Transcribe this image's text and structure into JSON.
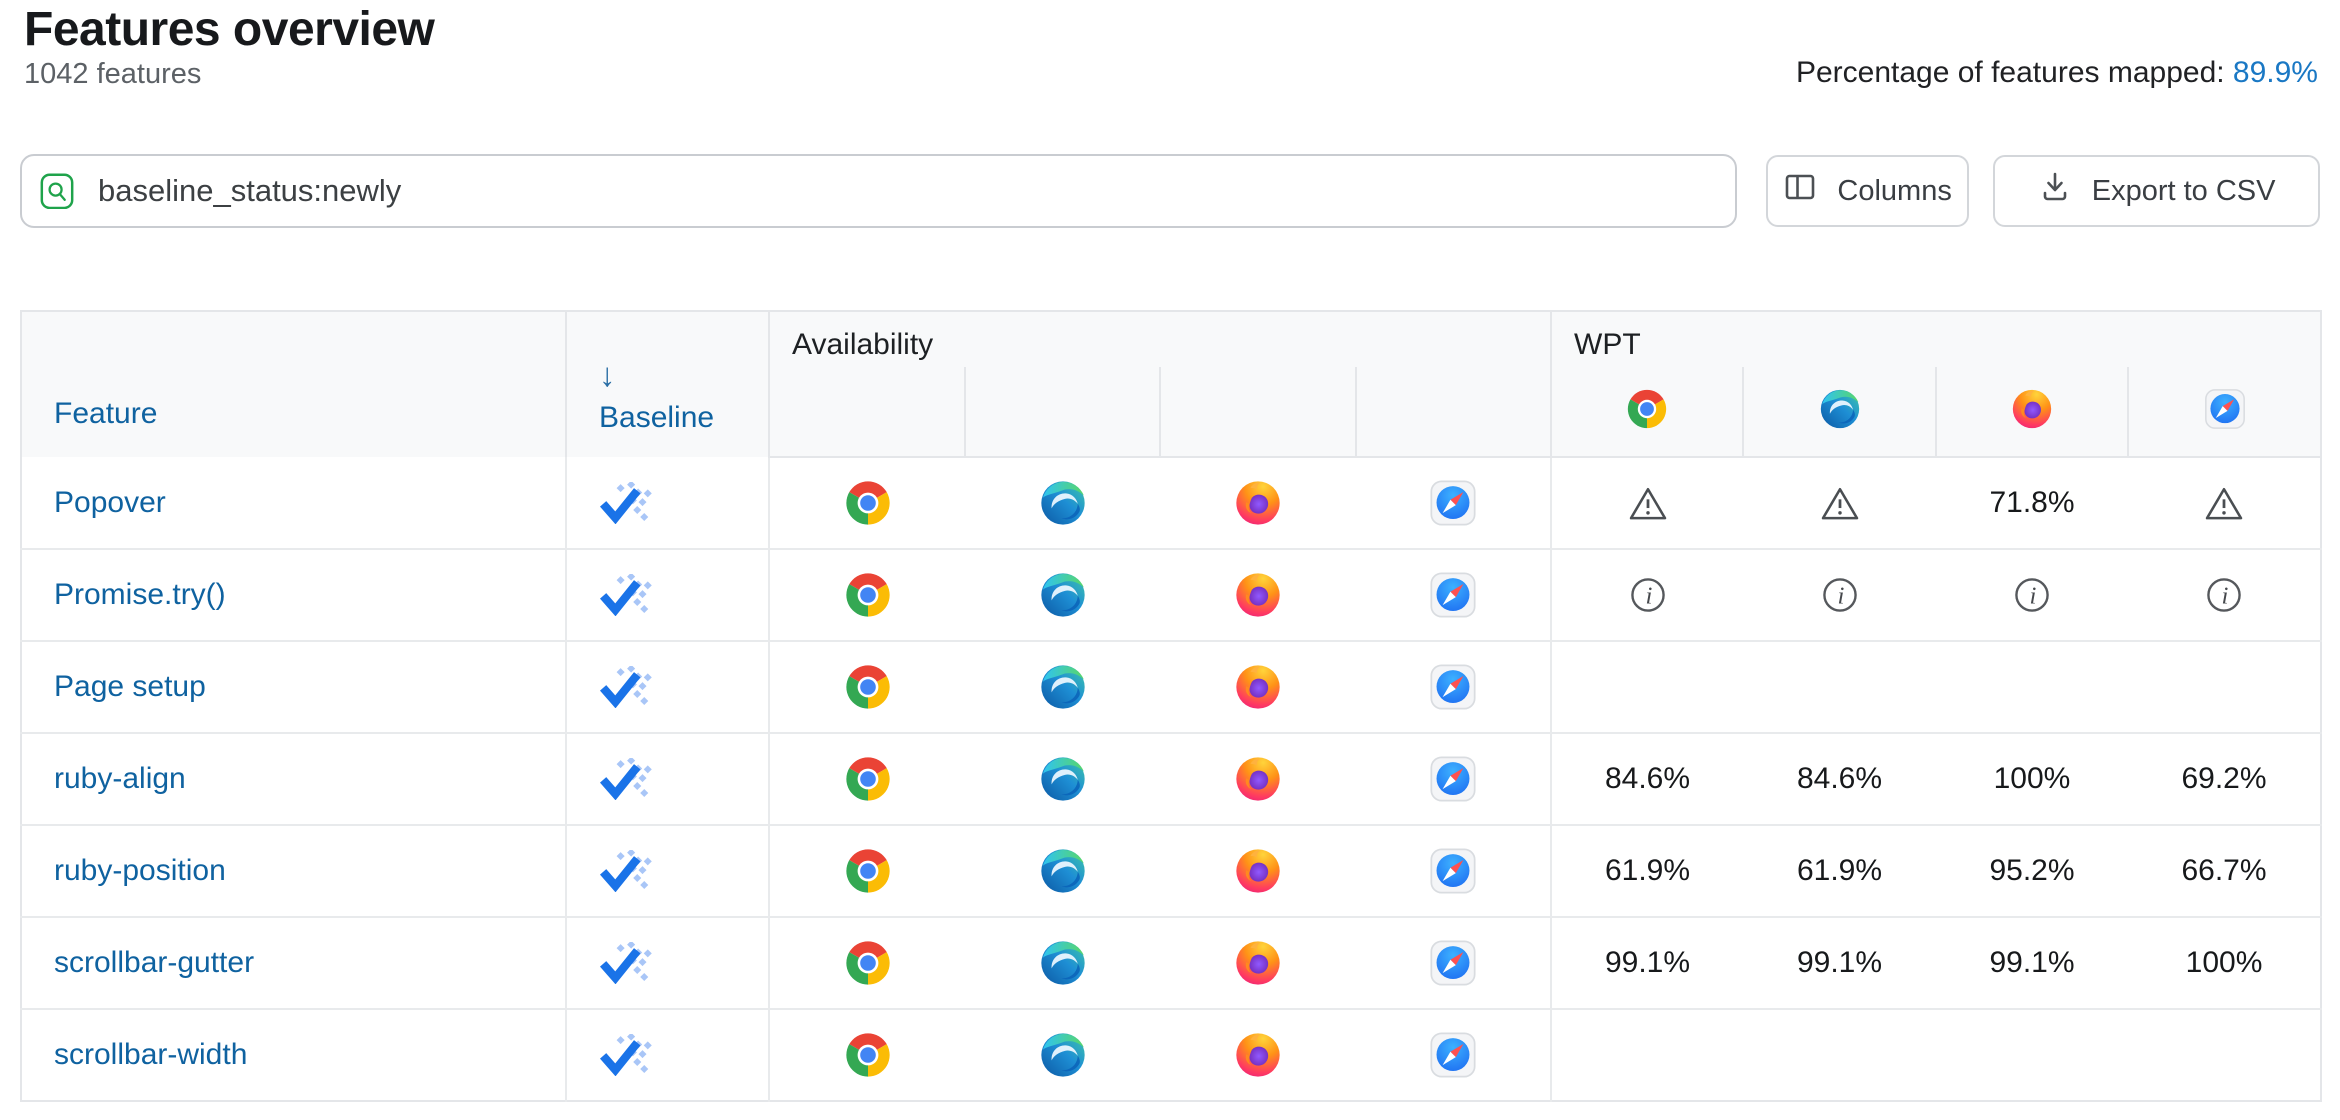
{
  "page": {
    "title": "Features overview",
    "feature_count": "1042 features",
    "mapped_label": "Percentage of features mapped: ",
    "mapped_value": "89.9%"
  },
  "toolbar": {
    "search_value": "baseline_status:newly",
    "search_icon": "search-icon",
    "columns_label": "Columns",
    "columns_icon": "columns-icon",
    "export_label": "Export to CSV",
    "export_icon": "download-icon"
  },
  "table": {
    "feature_header": "Feature",
    "baseline_header": "Baseline",
    "baseline_sort_icon": "arrow-down-icon",
    "baseline_sort_glyph": "↓",
    "availability_header": "Availability",
    "wpt_header": "WPT",
    "availability_subcolumns": [
      "chrome",
      "edge",
      "firefox",
      "safari"
    ],
    "wpt_subcolumns": [
      "chrome",
      "edge",
      "firefox",
      "safari"
    ],
    "rows": [
      {
        "feature": "Popover",
        "baseline": "newly-available",
        "availability": [
          "chrome",
          "edge",
          "firefox",
          "safari"
        ],
        "wpt": [
          {
            "type": "warning"
          },
          {
            "type": "warning"
          },
          {
            "type": "value",
            "value": "71.8%"
          },
          {
            "type": "warning"
          }
        ]
      },
      {
        "feature": "Promise.try()",
        "baseline": "newly-available",
        "availability": [
          "chrome",
          "edge",
          "firefox",
          "safari"
        ],
        "wpt": [
          {
            "type": "info"
          },
          {
            "type": "info"
          },
          {
            "type": "info"
          },
          {
            "type": "info"
          }
        ]
      },
      {
        "feature": "Page setup",
        "baseline": "newly-available",
        "availability": [
          "chrome",
          "edge",
          "firefox",
          "safari"
        ],
        "wpt": [
          {
            "type": "empty"
          },
          {
            "type": "empty"
          },
          {
            "type": "empty"
          },
          {
            "type": "empty"
          }
        ]
      },
      {
        "feature": "ruby-align",
        "baseline": "newly-available",
        "availability": [
          "chrome",
          "edge",
          "firefox",
          "safari"
        ],
        "wpt": [
          {
            "type": "value",
            "value": "84.6%"
          },
          {
            "type": "value",
            "value": "84.6%"
          },
          {
            "type": "value",
            "value": "100%"
          },
          {
            "type": "value",
            "value": "69.2%"
          }
        ]
      },
      {
        "feature": "ruby-position",
        "baseline": "newly-available",
        "availability": [
          "chrome",
          "edge",
          "firefox",
          "safari"
        ],
        "wpt": [
          {
            "type": "value",
            "value": "61.9%"
          },
          {
            "type": "value",
            "value": "61.9%"
          },
          {
            "type": "value",
            "value": "95.2%"
          },
          {
            "type": "value",
            "value": "66.7%"
          }
        ]
      },
      {
        "feature": "scrollbar-gutter",
        "baseline": "newly-available",
        "availability": [
          "chrome",
          "edge",
          "firefox",
          "safari"
        ],
        "wpt": [
          {
            "type": "value",
            "value": "99.1%"
          },
          {
            "type": "value",
            "value": "99.1%"
          },
          {
            "type": "value",
            "value": "99.1%"
          },
          {
            "type": "value",
            "value": "100%"
          }
        ]
      },
      {
        "feature": "scrollbar-width",
        "baseline": "newly-available",
        "availability": [
          "chrome",
          "edge",
          "firefox",
          "safari"
        ],
        "wpt": [
          {
            "type": "empty"
          },
          {
            "type": "empty"
          },
          {
            "type": "empty"
          },
          {
            "type": "empty"
          }
        ]
      }
    ]
  },
  "colors": {
    "link_blue": "#0f62a0",
    "mapped_link_blue": "#1a78c4",
    "baseline_check_blue": "#1a73e8",
    "baseline_dot_blue": "#a9c6f7",
    "search_green": "#1fa34b",
    "header_bg": "#f8f9fa",
    "border": "#e4e6e9"
  }
}
